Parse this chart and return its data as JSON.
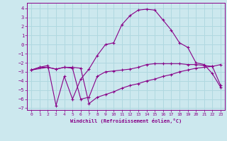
{
  "xlabel": "Windchill (Refroidissement éolien,°C)",
  "background_color": "#cce8ee",
  "grid_color": "#b0d8e0",
  "line_color": "#880088",
  "xlim": [
    -0.5,
    23.5
  ],
  "ylim": [
    -7.2,
    4.6
  ],
  "xticks": [
    0,
    1,
    2,
    3,
    4,
    5,
    6,
    7,
    8,
    9,
    10,
    11,
    12,
    13,
    14,
    15,
    16,
    17,
    18,
    19,
    20,
    21,
    22,
    23
  ],
  "yticks": [
    -7,
    -6,
    -5,
    -4,
    -3,
    -2,
    -1,
    0,
    1,
    2,
    3,
    4
  ],
  "series1_x": [
    0,
    2,
    3,
    4,
    5,
    6,
    7,
    8,
    9,
    10,
    11,
    12,
    13,
    14,
    15,
    16,
    17,
    18,
    19,
    20,
    21,
    22,
    23
  ],
  "series1_y": [
    -2.8,
    -2.5,
    -2.7,
    -2.5,
    -2.5,
    -2.6,
    -6.5,
    -5.8,
    -5.5,
    -5.2,
    -4.8,
    -4.5,
    -4.3,
    -4.0,
    -3.8,
    -3.5,
    -3.3,
    -3.0,
    -2.8,
    -2.6,
    -2.5,
    -2.4,
    -4.5
  ],
  "series2_x": [
    0,
    1,
    2,
    3,
    4,
    5,
    6,
    7,
    8,
    9,
    10,
    11,
    12,
    13,
    14,
    15,
    16,
    17,
    18,
    19,
    20,
    21,
    22,
    23
  ],
  "series2_y": [
    -2.8,
    -2.5,
    -2.3,
    -6.7,
    -3.5,
    -6.0,
    -3.8,
    -2.7,
    -1.2,
    0.0,
    0.2,
    2.2,
    3.2,
    3.8,
    3.9,
    3.8,
    2.7,
    1.6,
    0.2,
    -0.3,
    -2.0,
    -2.2,
    -3.2,
    -4.7
  ],
  "series3_x": [
    0,
    1,
    2,
    3,
    4,
    5,
    6,
    7,
    8,
    9,
    10,
    11,
    12,
    13,
    14,
    15,
    16,
    17,
    18,
    19,
    20,
    21,
    22,
    23
  ],
  "series3_y": [
    -2.8,
    -2.5,
    -2.5,
    -2.7,
    -2.5,
    -2.6,
    -6.0,
    -5.8,
    -3.5,
    -3.0,
    -2.9,
    -2.8,
    -2.7,
    -2.5,
    -2.2,
    -2.1,
    -2.1,
    -2.1,
    -2.1,
    -2.2,
    -2.2,
    -2.3,
    -2.4,
    -2.2
  ]
}
